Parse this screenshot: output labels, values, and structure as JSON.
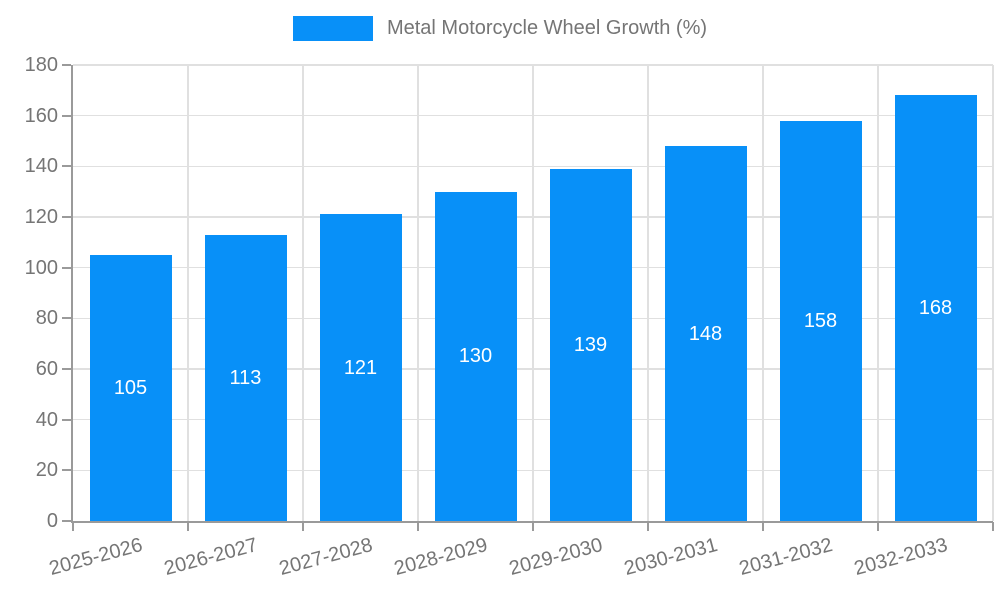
{
  "legend": {
    "label": "Metal Motorcycle Wheel Growth (%)"
  },
  "colors": {
    "bar": "#0890f8",
    "bar_label_text": "#ffffff",
    "grid": "#e0e0e0",
    "axis": "#9a9a9a",
    "tick_text": "#757575",
    "background": "#ffffff"
  },
  "chart_data": {
    "type": "bar",
    "title": "Metal Motorcycle Wheel Growth (%)",
    "categories": [
      "2025-2026",
      "2026-2027",
      "2027-2028",
      "2028-2029",
      "2029-2030",
      "2030-2031",
      "2031-2032",
      "2032-2033"
    ],
    "values": [
      105,
      113,
      121,
      130,
      139,
      148,
      158,
      168
    ],
    "xlabel": "",
    "ylabel": "",
    "ylim": [
      0,
      180
    ],
    "yticks": [
      0,
      20,
      40,
      60,
      80,
      100,
      120,
      140,
      160,
      180
    ],
    "grid": true,
    "legend_position": "top-center",
    "x_label_rotation_deg": -15,
    "value_labels": "inside-center"
  }
}
